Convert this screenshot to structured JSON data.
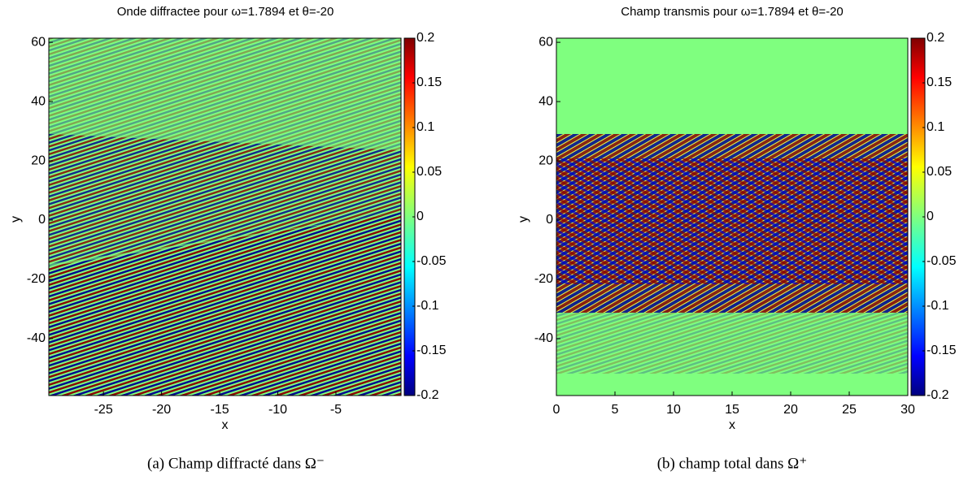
{
  "chart_data": [
    {
      "type": "heatmap",
      "title": "Onde diffractee pour ω=1.7894 et θ=-20",
      "xlabel": "x",
      "ylabel": "y",
      "xlim": [
        -29.7,
        0.6
      ],
      "xticks": [
        -25,
        -20,
        -15,
        -10,
        -5
      ],
      "ylim": [
        -59.2,
        61.4
      ],
      "yticks": [
        60,
        40,
        20,
        0,
        -20,
        -40
      ],
      "clim": [
        -0.2,
        0.2
      ],
      "cticks": [
        0.2,
        0.15,
        0.1,
        0.05,
        0,
        -0.05,
        -0.1,
        -0.15,
        -0.2
      ],
      "caption": "(a)  Champ diffracté dans Ω⁻"
    },
    {
      "type": "heatmap",
      "title": "Champ transmis pour ω=1.7894 et θ=-20",
      "xlabel": "x",
      "ylabel": "y",
      "xlim": [
        0,
        30
      ],
      "xticks": [
        0,
        5,
        10,
        15,
        20,
        25,
        30
      ],
      "ylim": [
        -59.2,
        61.4
      ],
      "yticks": [
        60,
        40,
        20,
        0,
        -20,
        -40
      ],
      "clim": [
        -0.2,
        0.2
      ],
      "cticks": [
        0.2,
        0.15,
        0.1,
        0.05,
        0,
        -0.05,
        -0.1,
        -0.15,
        -0.2
      ],
      "caption": "(b)  champ total dans Ω⁺"
    }
  ]
}
